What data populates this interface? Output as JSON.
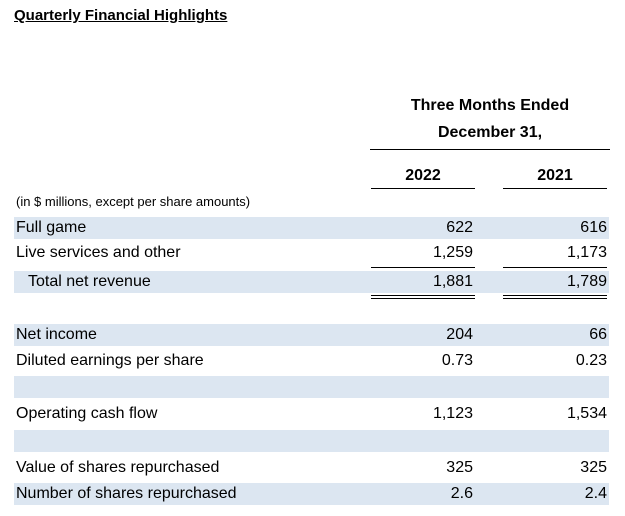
{
  "title": "Quarterly Financial Highlights",
  "header": {
    "line1": "Three Months Ended",
    "line2": "December 31,",
    "col_2022": "2022",
    "col_2021": "2021"
  },
  "note": "(in $ millions, except per share amounts)",
  "rows": [
    {
      "label": "Full game",
      "v2022": "622",
      "v2021": "616"
    },
    {
      "label": "Live services and other",
      "v2022": "1,259",
      "v2021": "1,173"
    },
    {
      "label": "Total net revenue",
      "v2022": "1,881",
      "v2021": "1,789"
    },
    {
      "label": "Net income",
      "v2022": "204",
      "v2021": "66"
    },
    {
      "label": "Diluted earnings per share",
      "v2022": "0.73",
      "v2021": "0.23"
    },
    {
      "label": "Operating cash flow",
      "v2022": "1,123",
      "v2021": "1,534"
    },
    {
      "label": "Value of shares repurchased",
      "v2022": "325",
      "v2021": "325"
    },
    {
      "label": "Number of shares repurchased",
      "v2022": "2.6",
      "v2021": "2.4"
    }
  ],
  "colors": {
    "row_shade": "#dce6f1"
  }
}
